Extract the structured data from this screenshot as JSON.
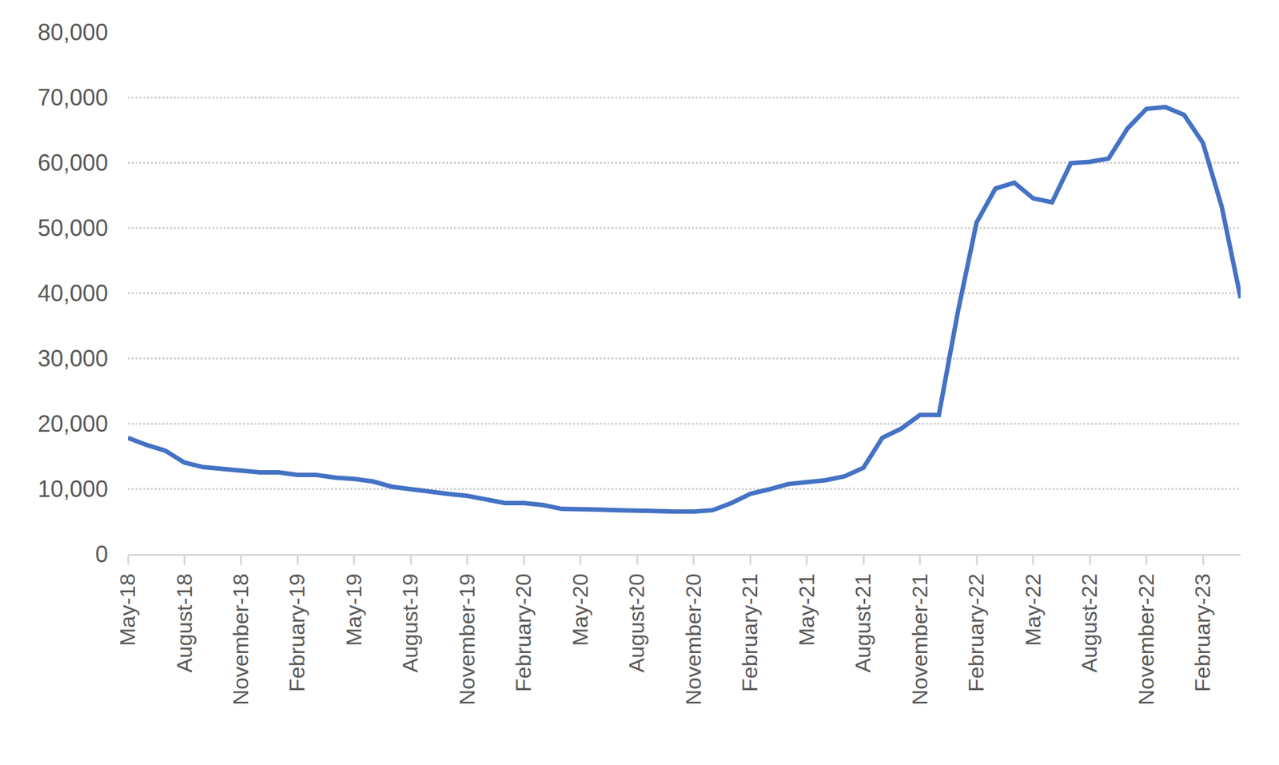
{
  "chart_data": {
    "type": "line",
    "color": "#4472c4",
    "grid": true,
    "line_style": "solid",
    "categories": [
      "May-18",
      null,
      null,
      "August-18",
      null,
      null,
      "November-18",
      null,
      null,
      "February-19",
      null,
      null,
      "May-19",
      null,
      null,
      "August-19",
      null,
      null,
      "November-19",
      null,
      null,
      "February-20",
      null,
      null,
      "May-20",
      null,
      null,
      "August-20",
      null,
      null,
      "November-20",
      null,
      null,
      "February-21",
      null,
      null,
      "May-21",
      null,
      null,
      "August-21",
      null,
      null,
      "November-21",
      null,
      null,
      "February-22",
      null,
      null,
      "May-22",
      null,
      null,
      "August-22",
      null,
      null,
      "November-22",
      null,
      null,
      "February-23",
      null,
      null
    ],
    "values": [
      17800,
      16700,
      15800,
      14000,
      13300,
      13000,
      12700,
      12500,
      12500,
      12100,
      12100,
      11700,
      11500,
      11100,
      10300,
      9900,
      9600,
      9200,
      8900,
      8300,
      7800,
      7800,
      7500,
      6900,
      6900,
      6800,
      6700,
      6600,
      6500,
      6500,
      6500,
      6700,
      7800,
      9200,
      9900,
      10700,
      11000,
      11300,
      11900,
      13200,
      17800,
      19200,
      21300,
      21300,
      37000,
      50800,
      56000,
      56900,
      54500,
      53900,
      59900,
      60100,
      60600,
      65200,
      68200,
      68500,
      67300,
      63000,
      53200,
      39200
    ],
    "ylim": [
      0,
      80000
    ],
    "yticks": [
      0,
      {
        "value": 10000,
        "label": "10,000"
      },
      {
        "value": 20000,
        "label": "20,000"
      },
      {
        "value": 30000,
        "label": "30,000"
      },
      {
        "value": 40000,
        "label": "40,000"
      },
      {
        "value": 50000,
        "label": "50,000"
      },
      {
        "value": 60000,
        "label": "60,000"
      },
      {
        "value": 70000,
        "label": "70,000"
      },
      {
        "value": 80000,
        "label": "80,000"
      }
    ]
  }
}
